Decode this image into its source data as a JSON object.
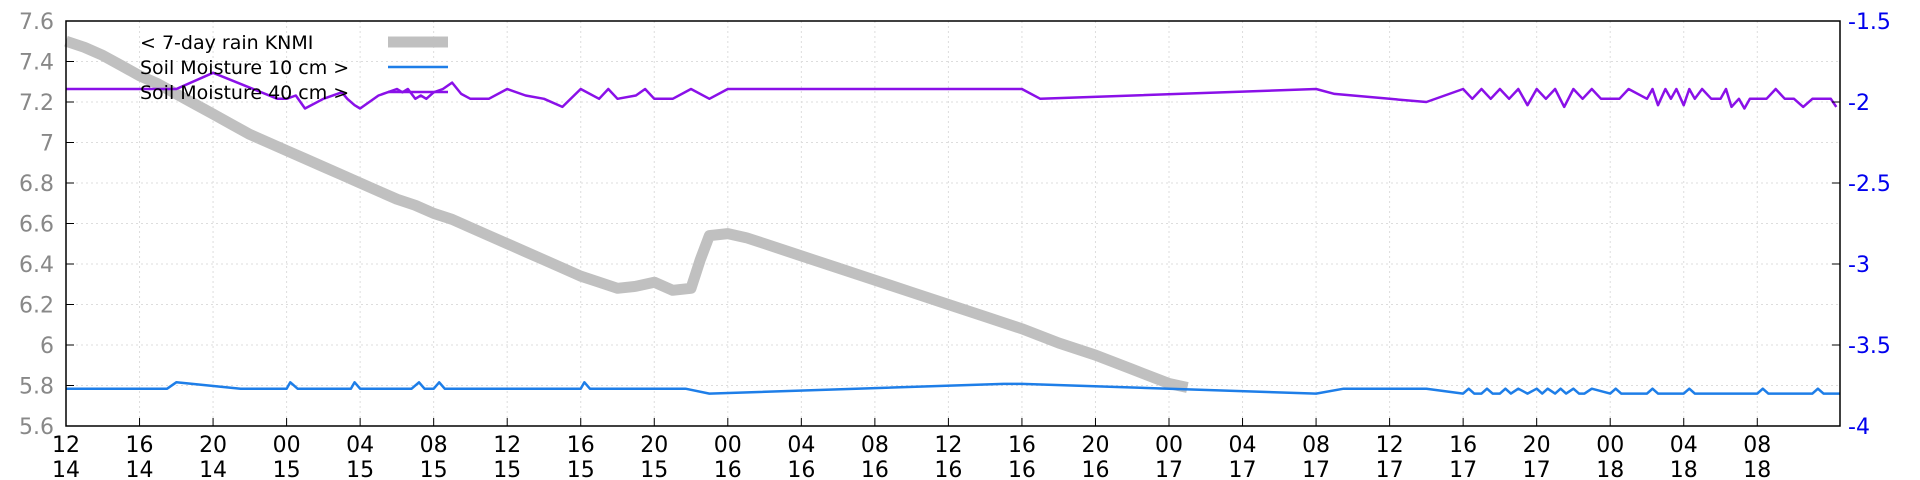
{
  "chart_data": {
    "type": "line",
    "title": "",
    "xlabel": "",
    "ylabel": "",
    "grid": true,
    "legend_placement": "top-left",
    "x_ticks": [
      {
        "x": 0,
        "hour": "12",
        "day": "14"
      },
      {
        "x": 4,
        "hour": "16",
        "day": "14"
      },
      {
        "x": 8,
        "hour": "20",
        "day": "14"
      },
      {
        "x": 12,
        "hour": "00",
        "day": "15"
      },
      {
        "x": 16,
        "hour": "04",
        "day": "15"
      },
      {
        "x": 20,
        "hour": "08",
        "day": "15"
      },
      {
        "x": 24,
        "hour": "12",
        "day": "15"
      },
      {
        "x": 28,
        "hour": "16",
        "day": "15"
      },
      {
        "x": 32,
        "hour": "20",
        "day": "15"
      },
      {
        "x": 36,
        "hour": "00",
        "day": "16"
      },
      {
        "x": 40,
        "hour": "04",
        "day": "16"
      },
      {
        "x": 44,
        "hour": "08",
        "day": "16"
      },
      {
        "x": 48,
        "hour": "12",
        "day": "16"
      },
      {
        "x": 52,
        "hour": "16",
        "day": "16"
      },
      {
        "x": 56,
        "hour": "20",
        "day": "16"
      },
      {
        "x": 60,
        "hour": "00",
        "day": "17"
      },
      {
        "x": 64,
        "hour": "04",
        "day": "17"
      },
      {
        "x": 68,
        "hour": "08",
        "day": "17"
      },
      {
        "x": 72,
        "hour": "12",
        "day": "17"
      },
      {
        "x": 76,
        "hour": "16",
        "day": "17"
      },
      {
        "x": 80,
        "hour": "20",
        "day": "17"
      },
      {
        "x": 84,
        "hour": "00",
        "day": "18"
      },
      {
        "x": 88,
        "hour": "04",
        "day": "18"
      },
      {
        "x": 92,
        "hour": "08",
        "day": "18"
      }
    ],
    "xlim": [
      0,
      96.5
    ],
    "y_left": {
      "lim": [
        5.6,
        7.6
      ],
      "ticks": [
        "7.6",
        "7.4",
        "7.2",
        "7",
        "6.8",
        "6.6",
        "6.4",
        "6.2",
        "6",
        "5.8",
        "5.6"
      ],
      "color": "#888888"
    },
    "y_right": {
      "lim": [
        -4,
        -1.5
      ],
      "ticks": [
        "-1.5",
        "-2",
        "-2.5",
        "-3",
        "-3.5",
        "-4"
      ],
      "color": "#0000ee"
    },
    "series": [
      {
        "name": "< 7-day rain KNMI",
        "axis": "left",
        "color": "#c0c0c0",
        "x": [
          0,
          1,
          2,
          3,
          4,
          5,
          6,
          7,
          8,
          9,
          10,
          11,
          12,
          13,
          14,
          15,
          16,
          17,
          18,
          19,
          20,
          21,
          22,
          23,
          24,
          25,
          26,
          27,
          28,
          29,
          30,
          31,
          32,
          33,
          34,
          34.5,
          35,
          36,
          37,
          38,
          40,
          42,
          44,
          46,
          48,
          50,
          52,
          54,
          56,
          58,
          60,
          61
        ],
        "values": [
          7.5,
          7.47,
          7.43,
          7.38,
          7.33,
          7.29,
          7.24,
          7.19,
          7.14,
          7.09,
          7.04,
          7.0,
          6.96,
          6.92,
          6.88,
          6.84,
          6.8,
          6.76,
          6.72,
          6.69,
          6.65,
          6.62,
          6.58,
          6.54,
          6.5,
          6.46,
          6.42,
          6.38,
          6.34,
          6.31,
          6.28,
          6.29,
          6.31,
          6.27,
          6.28,
          6.42,
          6.54,
          6.55,
          6.53,
          6.5,
          6.44,
          6.38,
          6.32,
          6.26,
          6.2,
          6.14,
          6.08,
          6.01,
          5.95,
          5.88,
          5.81,
          5.79
        ]
      },
      {
        "name": "Soil Moisture 10 cm >",
        "axis": "right",
        "color": "#1e7ee8",
        "x": [
          0,
          5.5,
          6,
          9.5,
          12,
          12.2,
          12.6,
          13,
          15.5,
          15.7,
          16,
          16.4,
          16.8,
          17,
          18.8,
          19.2,
          19.5,
          20,
          20.3,
          20.6,
          20.9,
          21,
          28,
          28.2,
          28.5,
          29,
          29.5,
          29.7,
          32,
          32.2,
          33.3,
          33.7,
          35,
          51,
          52,
          68,
          69.5,
          74,
          76,
          76.3,
          76.6,
          77,
          77.3,
          77.6,
          78,
          78.3,
          78.6,
          79,
          79.5,
          80,
          80.3,
          80.6,
          81,
          81.3,
          81.6,
          82,
          82.3,
          82.6,
          83,
          84,
          84.3,
          84.6,
          85,
          86,
          86.3,
          86.6,
          88,
          88.3,
          88.6,
          92,
          92.3,
          92.6,
          95,
          95.3,
          95.6,
          96.5
        ],
        "values": [
          -3.77,
          -3.77,
          -3.73,
          -3.77,
          -3.77,
          -3.73,
          -3.77,
          -3.77,
          -3.77,
          -3.73,
          -3.77,
          -3.77,
          -3.77,
          -3.77,
          -3.77,
          -3.73,
          -3.77,
          -3.77,
          -3.73,
          -3.77,
          -3.77,
          -3.77,
          -3.77,
          -3.73,
          -3.77,
          -3.77,
          -3.77,
          -3.77,
          -3.77,
          -3.77,
          -3.77,
          -3.77,
          -3.8,
          -3.74,
          -3.74,
          -3.8,
          -3.77,
          -3.77,
          -3.8,
          -3.77,
          -3.8,
          -3.8,
          -3.77,
          -3.8,
          -3.8,
          -3.77,
          -3.8,
          -3.77,
          -3.8,
          -3.77,
          -3.8,
          -3.77,
          -3.8,
          -3.77,
          -3.8,
          -3.77,
          -3.8,
          -3.8,
          -3.77,
          -3.8,
          -3.77,
          -3.8,
          -3.8,
          -3.8,
          -3.77,
          -3.8,
          -3.8,
          -3.77,
          -3.8,
          -3.8,
          -3.77,
          -3.8,
          -3.8,
          -3.77,
          -3.8,
          -3.8
        ]
      },
      {
        "name": "Soil Moisture 40 cm >",
        "axis": "right",
        "color": "#8a10e8",
        "x": [
          0,
          6,
          8,
          11.5,
          12,
          12.5,
          13,
          14,
          15,
          15.3,
          15.7,
          16,
          17,
          18,
          18.3,
          18.6,
          19,
          19.3,
          19.6,
          20,
          20.5,
          21,
          21.5,
          22,
          23,
          24,
          25,
          26,
          27,
          28,
          29,
          29.5,
          30,
          31,
          31.5,
          32,
          33,
          34,
          35,
          36,
          52,
          53,
          68,
          69,
          72,
          74,
          76,
          76.5,
          77,
          77.5,
          78,
          78.5,
          79,
          79.5,
          80,
          80.5,
          81,
          81.5,
          82,
          82.5,
          83,
          83.5,
          84,
          84.5,
          85,
          86,
          86.3,
          86.6,
          87,
          87.3,
          87.6,
          88,
          88.3,
          88.6,
          89,
          89.5,
          90,
          90.3,
          90.6,
          91,
          91.3,
          91.6,
          92,
          92.5,
          93,
          93.5,
          94,
          94.5,
          95,
          96,
          96.3
        ],
        "values": [
          -1.92,
          -1.92,
          -1.82,
          -1.98,
          -1.98,
          -1.96,
          -2.04,
          -1.98,
          -1.94,
          -1.98,
          -2.02,
          -2.04,
          -1.96,
          -1.92,
          -1.94,
          -1.92,
          -1.98,
          -1.96,
          -1.98,
          -1.94,
          -1.92,
          -1.88,
          -1.95,
          -1.98,
          -1.98,
          -1.92,
          -1.96,
          -1.98,
          -2.03,
          -1.92,
          -1.98,
          -1.92,
          -1.98,
          -1.96,
          -1.92,
          -1.98,
          -1.98,
          -1.92,
          -1.98,
          -1.92,
          -1.92,
          -1.98,
          -1.92,
          -1.95,
          -1.98,
          -2.0,
          -1.92,
          -1.98,
          -1.92,
          -1.98,
          -1.92,
          -1.98,
          -1.92,
          -2.02,
          -1.92,
          -1.98,
          -1.92,
          -2.03,
          -1.92,
          -1.98,
          -1.92,
          -1.98,
          -1.98,
          -1.98,
          -1.92,
          -1.98,
          -1.92,
          -2.02,
          -1.92,
          -1.98,
          -1.92,
          -2.02,
          -1.92,
          -1.98,
          -1.92,
          -1.98,
          -1.98,
          -1.92,
          -2.03,
          -1.98,
          -2.04,
          -1.98,
          -1.98,
          -1.98,
          -1.92,
          -1.98,
          -1.98,
          -2.03,
          -1.98,
          -1.98,
          -2.03
        ]
      }
    ]
  }
}
